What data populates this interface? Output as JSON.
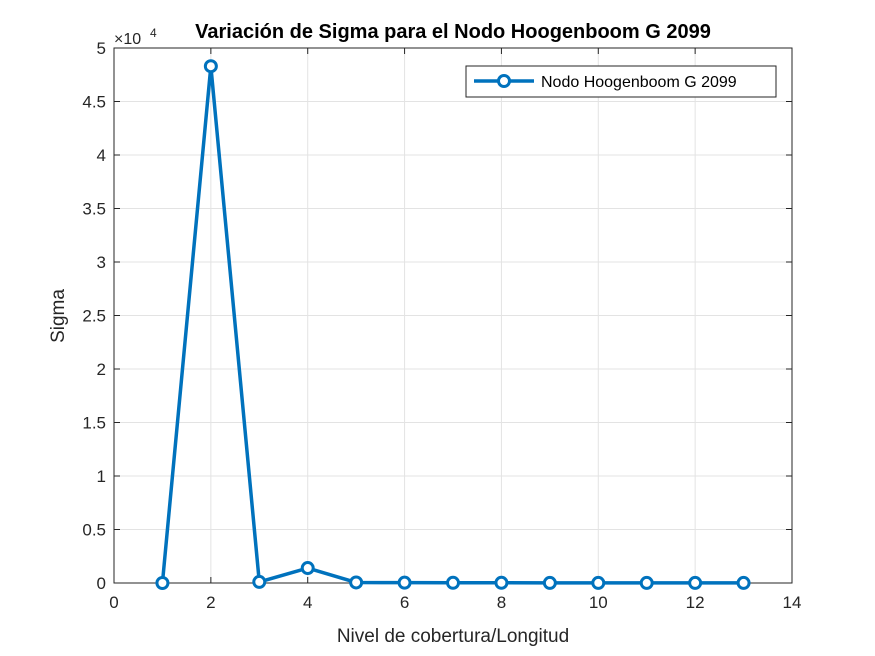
{
  "chart_data": {
    "type": "line",
    "title": "Variación de Sigma para el Nodo Hoogenboom G 2099",
    "xlabel": "Nivel de cobertura/Longitud",
    "ylabel": "Sigma",
    "y_exponent_base": "×10",
    "y_exponent_power": "4",
    "xlim": [
      0,
      14
    ],
    "ylim": [
      0,
      5
    ],
    "xticks": [
      0,
      2,
      4,
      6,
      8,
      10,
      12,
      14
    ],
    "yticks": [
      0,
      0.5,
      1,
      1.5,
      2,
      2.5,
      3,
      3.5,
      4,
      4.5,
      5
    ],
    "grid": true,
    "legend_position": "top-right",
    "series": [
      {
        "name": "Nodo Hoogenboom G 2099",
        "color": "#0072bd",
        "marker": "circle",
        "x": [
          1,
          2,
          3,
          4,
          5,
          6,
          7,
          8,
          9,
          10,
          11,
          12,
          13
        ],
        "y": [
          0.0,
          4.83,
          0.01,
          0.14,
          0.005,
          0.003,
          0.002,
          0.002,
          0.001,
          0.001,
          0.001,
          0.001,
          0.001
        ]
      }
    ]
  }
}
